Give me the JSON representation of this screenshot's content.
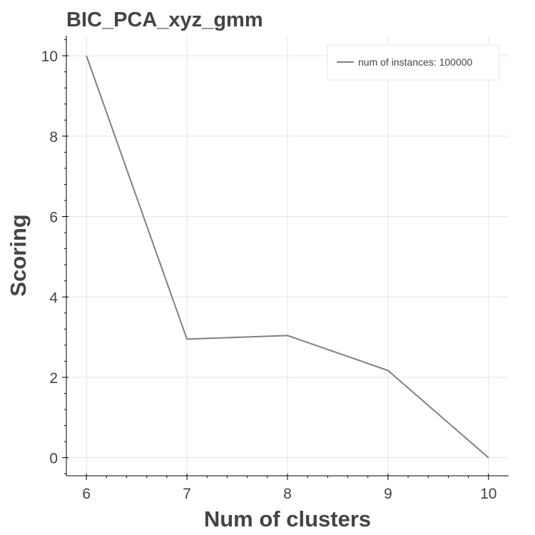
{
  "chart_data": {
    "type": "line",
    "title": "BIC_PCA_xyz_gmm",
    "xlabel": "Num of clusters",
    "ylabel": "Scoring",
    "x": [
      6,
      7,
      8,
      9,
      10
    ],
    "series": [
      {
        "name": "num of instances: 100000",
        "values": [
          10.0,
          2.95,
          3.04,
          2.17,
          0.0
        ],
        "color": "#808080"
      }
    ],
    "xlim": [
      5.8,
      10.2
    ],
    "ylim": [
      -0.45,
      10.5
    ],
    "xticks": [
      6,
      7,
      8,
      9,
      10
    ],
    "yticks": [
      0,
      2,
      4,
      6,
      8,
      10
    ],
    "grid": true,
    "legend_position": "top-right"
  }
}
